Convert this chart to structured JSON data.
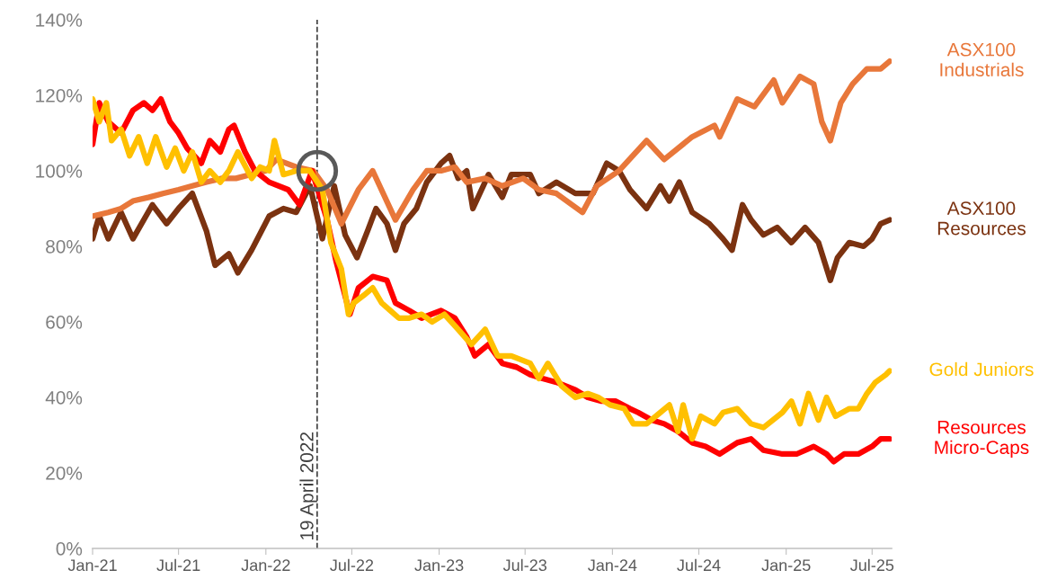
{
  "chart_data": {
    "type": "line",
    "legend": false,
    "grid": false,
    "line_style": "solid",
    "marker": "none",
    "xlim": [
      "2021-01-01",
      "2025-08-11"
    ],
    "ylim": [
      0,
      140
    ],
    "xticks": [
      {
        "value": "2021-01-01",
        "label": "Jan-21"
      },
      {
        "value": "2021-07-01",
        "label": "Jul-21"
      },
      {
        "value": "2022-01-01",
        "label": "Jan-22"
      },
      {
        "value": "2022-07-01",
        "label": "Jul-22"
      },
      {
        "value": "2023-01-01",
        "label": "Jan-23"
      },
      {
        "value": "2023-07-01",
        "label": "Jul-23"
      },
      {
        "value": "2024-01-01",
        "label": "Jan-24"
      },
      {
        "value": "2024-07-01",
        "label": "Jul-24"
      },
      {
        "value": "2025-01-01",
        "label": "Jan-25"
      },
      {
        "value": "2025-07-01",
        "label": "Jul-25"
      }
    ],
    "yticks": [
      {
        "value": 0,
        "label": "0%"
      },
      {
        "value": 20,
        "label": "20%"
      },
      {
        "value": 40,
        "label": "40%"
      },
      {
        "value": 60,
        "label": "60%"
      },
      {
        "value": 80,
        "label": "80%"
      },
      {
        "value": 100,
        "label": "100%"
      },
      {
        "value": 120,
        "label": "120%"
      },
      {
        "value": 140,
        "label": "140%"
      }
    ],
    "ref_lines": [
      {
        "axis": "x",
        "value": "2022-04-19",
        "label": "19 April 2022",
        "color": "#404040",
        "line_style": "dashed"
      }
    ],
    "series": [
      {
        "name": "ASX100\nResources",
        "color": "#7b3210",
        "x": [
          "2021-01-01",
          "2021-01-15",
          "2021-02-03",
          "2021-03-02",
          "2021-03-27",
          "2021-05-07",
          "2021-06-06",
          "2021-07-01",
          "2021-07-30",
          "2021-08-29",
          "2021-09-16",
          "2021-10-15",
          "2021-11-03",
          "2021-12-02",
          "2022-01-08",
          "2022-02-07",
          "2022-03-06",
          "2022-04-04",
          "2022-04-30",
          "2022-05-25",
          "2022-06-17",
          "2022-07-12",
          "2022-08-03",
          "2022-08-21",
          "2022-09-13",
          "2022-10-01",
          "2022-10-19",
          "2022-11-14",
          "2022-12-06",
          "2023-01-05",
          "2023-01-23",
          "2023-02-10",
          "2023-02-28",
          "2023-03-13",
          "2023-04-15",
          "2023-05-14",
          "2023-06-02",
          "2023-07-12",
          "2023-07-30",
          "2023-09-05",
          "2023-10-15",
          "2023-11-21",
          "2023-12-20",
          "2024-01-15",
          "2024-02-07",
          "2024-03-13",
          "2024-04-11",
          "2024-04-30",
          "2024-05-21",
          "2024-06-17",
          "2024-07-23",
          "2024-08-21",
          "2024-09-09",
          "2024-10-01",
          "2024-10-19",
          "2024-11-14",
          "2024-12-13",
          "2025-01-12",
          "2025-02-10",
          "2025-03-10",
          "2025-04-04",
          "2025-04-19",
          "2025-05-14",
          "2025-06-13",
          "2025-07-01",
          "2025-07-19",
          "2025-08-07"
        ],
        "values": [
          82,
          88,
          82,
          89,
          82,
          91,
          86,
          90,
          94,
          84,
          75,
          78,
          73,
          79,
          88,
          90,
          89,
          96,
          82,
          96,
          83,
          77,
          84,
          90,
          86,
          79,
          86,
          90,
          97,
          102,
          104,
          98,
          100,
          90,
          99,
          93,
          99,
          99,
          94,
          97,
          94,
          94,
          102,
          100,
          95,
          90,
          96,
          92,
          97,
          89,
          86,
          82,
          79,
          91,
          87,
          83,
          85,
          81,
          85,
          81,
          71,
          77,
          81,
          80,
          82,
          86,
          87
        ]
      },
      {
        "name": "ASX100\nIndustrials",
        "color": "#e8773a",
        "x": [
          "2021-01-01",
          "2021-02-03",
          "2021-03-02",
          "2021-03-27",
          "2021-04-30",
          "2021-05-29",
          "2021-07-01",
          "2021-07-30",
          "2021-08-29",
          "2021-10-01",
          "2021-10-30",
          "2021-11-29",
          "2022-01-01",
          "2022-01-23",
          "2022-03-06",
          "2022-04-11",
          "2022-05-10",
          "2022-06-09",
          "2022-07-15",
          "2022-08-14",
          "2022-10-01",
          "2022-11-07",
          "2022-12-06",
          "2023-01-05",
          "2023-02-03",
          "2023-02-28",
          "2023-04-08",
          "2023-05-14",
          "2023-06-27",
          "2023-07-30",
          "2023-09-05",
          "2023-10-30",
          "2023-11-29",
          "2024-01-15",
          "2024-03-13",
          "2024-04-19",
          "2024-06-17",
          "2024-08-03",
          "2024-08-14",
          "2024-09-20",
          "2024-10-26",
          "2024-12-06",
          "2024-12-24",
          "2025-01-30",
          "2025-02-28",
          "2025-03-17",
          "2025-04-04",
          "2025-04-26",
          "2025-05-21",
          "2025-06-20",
          "2025-07-19",
          "2025-08-07"
        ],
        "values": [
          88,
          89,
          90,
          92,
          93,
          94,
          95,
          96,
          97,
          98,
          98,
          99,
          100,
          103,
          101,
          100,
          95,
          86,
          95,
          100,
          87,
          95,
          100,
          100,
          101,
          97,
          98,
          96,
          98,
          95,
          94,
          89,
          96,
          100,
          108,
          103,
          109,
          112,
          109,
          119,
          117,
          124,
          118,
          125,
          123,
          113,
          108,
          118,
          123,
          127,
          127,
          129
        ]
      },
      {
        "name": "Resources\nMicro-Caps",
        "color": "#ff0000",
        "x": [
          "2021-01-01",
          "2021-01-15",
          "2021-02-03",
          "2021-03-02",
          "2021-03-27",
          "2021-04-19",
          "2021-05-07",
          "2021-05-25",
          "2021-06-13",
          "2021-07-01",
          "2021-07-19",
          "2021-08-18",
          "2021-09-05",
          "2021-09-27",
          "2021-10-15",
          "2021-10-26",
          "2021-11-18",
          "2021-12-09",
          "2022-01-08",
          "2022-02-17",
          "2022-03-13",
          "2022-04-08",
          "2022-05-10",
          "2022-05-29",
          "2022-06-27",
          "2022-07-15",
          "2022-08-14",
          "2022-09-13",
          "2022-10-01",
          "2022-10-30",
          "2022-11-25",
          "2023-01-05",
          "2023-02-03",
          "2023-02-28",
          "2023-03-17",
          "2023-04-15",
          "2023-05-14",
          "2023-06-13",
          "2023-07-12",
          "2023-08-07",
          "2023-09-05",
          "2023-10-15",
          "2023-11-10",
          "2023-12-09",
          "2024-01-08",
          "2024-02-07",
          "2024-02-24",
          "2024-03-24",
          "2024-04-19",
          "2024-05-18",
          "2024-06-17",
          "2024-07-15",
          "2024-08-14",
          "2024-09-20",
          "2024-10-19",
          "2024-11-14",
          "2024-12-24",
          "2025-01-23",
          "2025-02-28",
          "2025-03-27",
          "2025-04-11",
          "2025-05-03",
          "2025-06-02",
          "2025-07-01",
          "2025-07-19",
          "2025-08-07"
        ],
        "values": [
          107,
          118,
          113,
          110,
          116,
          118,
          116,
          119,
          113,
          110,
          106,
          102,
          108,
          105,
          111,
          112,
          105,
          100,
          97,
          95,
          91,
          100,
          87,
          76,
          62,
          69,
          72,
          71,
          65,
          63,
          61,
          63,
          61,
          56,
          51,
          54,
          49,
          48,
          46,
          45,
          44,
          42,
          40,
          39,
          39,
          37,
          36,
          34,
          33,
          31,
          28,
          27,
          25,
          28,
          29,
          26,
          25,
          25,
          27,
          25,
          23,
          25,
          25,
          27,
          29,
          29
        ]
      },
      {
        "name": "Gold Juniors",
        "color": "#ffc000",
        "x": [
          "2021-01-01",
          "2021-01-15",
          "2021-01-30",
          "2021-02-10",
          "2021-03-02",
          "2021-03-20",
          "2021-04-08",
          "2021-04-26",
          "2021-05-14",
          "2021-06-06",
          "2021-06-24",
          "2021-07-12",
          "2021-07-30",
          "2021-08-18",
          "2021-09-05",
          "2021-09-27",
          "2021-10-15",
          "2021-11-03",
          "2021-12-02",
          "2021-12-20",
          "2022-01-08",
          "2022-01-19",
          "2022-02-07",
          "2022-03-06",
          "2022-04-04",
          "2022-04-30",
          "2022-05-18",
          "2022-06-09",
          "2022-06-24",
          "2022-07-05",
          "2022-07-26",
          "2022-08-14",
          "2022-09-02",
          "2022-09-20",
          "2022-10-08",
          "2022-10-30",
          "2022-11-25",
          "2022-12-17",
          "2023-01-12",
          "2023-02-10",
          "2023-03-10",
          "2023-04-08",
          "2023-05-04",
          "2023-06-02",
          "2023-07-12",
          "2023-07-30",
          "2023-08-18",
          "2023-09-16",
          "2023-10-15",
          "2023-11-10",
          "2023-12-02",
          "2023-12-27",
          "2024-01-26",
          "2024-02-14",
          "2024-03-13",
          "2024-04-11",
          "2024-04-30",
          "2024-05-18",
          "2024-05-29",
          "2024-06-17",
          "2024-07-05",
          "2024-08-03",
          "2024-08-21",
          "2024-09-20",
          "2024-10-19",
          "2024-11-14",
          "2024-12-24",
          "2025-01-12",
          "2025-01-30",
          "2025-02-17",
          "2025-03-10",
          "2025-03-27",
          "2025-04-15",
          "2025-05-14",
          "2025-06-02",
          "2025-06-20",
          "2025-07-08",
          "2025-07-30",
          "2025-08-07"
        ],
        "values": [
          119,
          113,
          118,
          108,
          111,
          104,
          109,
          102,
          109,
          101,
          106,
          100,
          105,
          97,
          100,
          97,
          100,
          105,
          98,
          101,
          100,
          108,
          99,
          100,
          100,
          95,
          81,
          74,
          62,
          65,
          67,
          69,
          65,
          63,
          61,
          61,
          62,
          60,
          62,
          58,
          54,
          58,
          51,
          51,
          49,
          45,
          49,
          43,
          40,
          41,
          40,
          38,
          37,
          33,
          33,
          36,
          38,
          31,
          38,
          29,
          35,
          33,
          36,
          37,
          33,
          32,
          36,
          39,
          33,
          41,
          34,
          40,
          35,
          37,
          37,
          41,
          44,
          46,
          47
        ]
      },
      {
        "type": "scatter",
        "marker": "circle",
        "color": "#595959",
        "x": [
          "2022-04-19"
        ],
        "values": [
          100
        ]
      }
    ]
  }
}
